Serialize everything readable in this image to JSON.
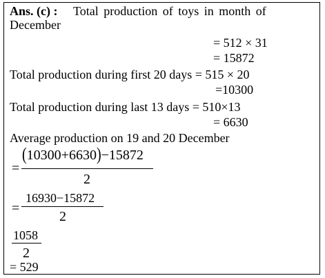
{
  "solution": {
    "intro_label": "Ans. (c) :",
    "intro_text_1": "Total production of toys in month of",
    "intro_text_2": "December",
    "step_december_1": "= 512 × 31",
    "step_december_2": "= 15872",
    "first20_text": "Total production during first 20 days = 515 × 20",
    "first20_result": "=10300",
    "last13_text": "Total production during last 13 days = 510×13",
    "last13_result": "= 6630",
    "avg_text": "Average production on 19 and 20 December",
    "frac1": {
      "eq": "=",
      "lparen": "(",
      "inner": "10300+6630",
      "rparen": ")",
      "minus_part": "−15872",
      "denominator": "2"
    },
    "frac2": {
      "eq": "=",
      "numerator": "16930−15872",
      "denominator": "2"
    },
    "frac3": {
      "numerator": "1058",
      "denominator": "2"
    },
    "final_answer": "= 529"
  }
}
